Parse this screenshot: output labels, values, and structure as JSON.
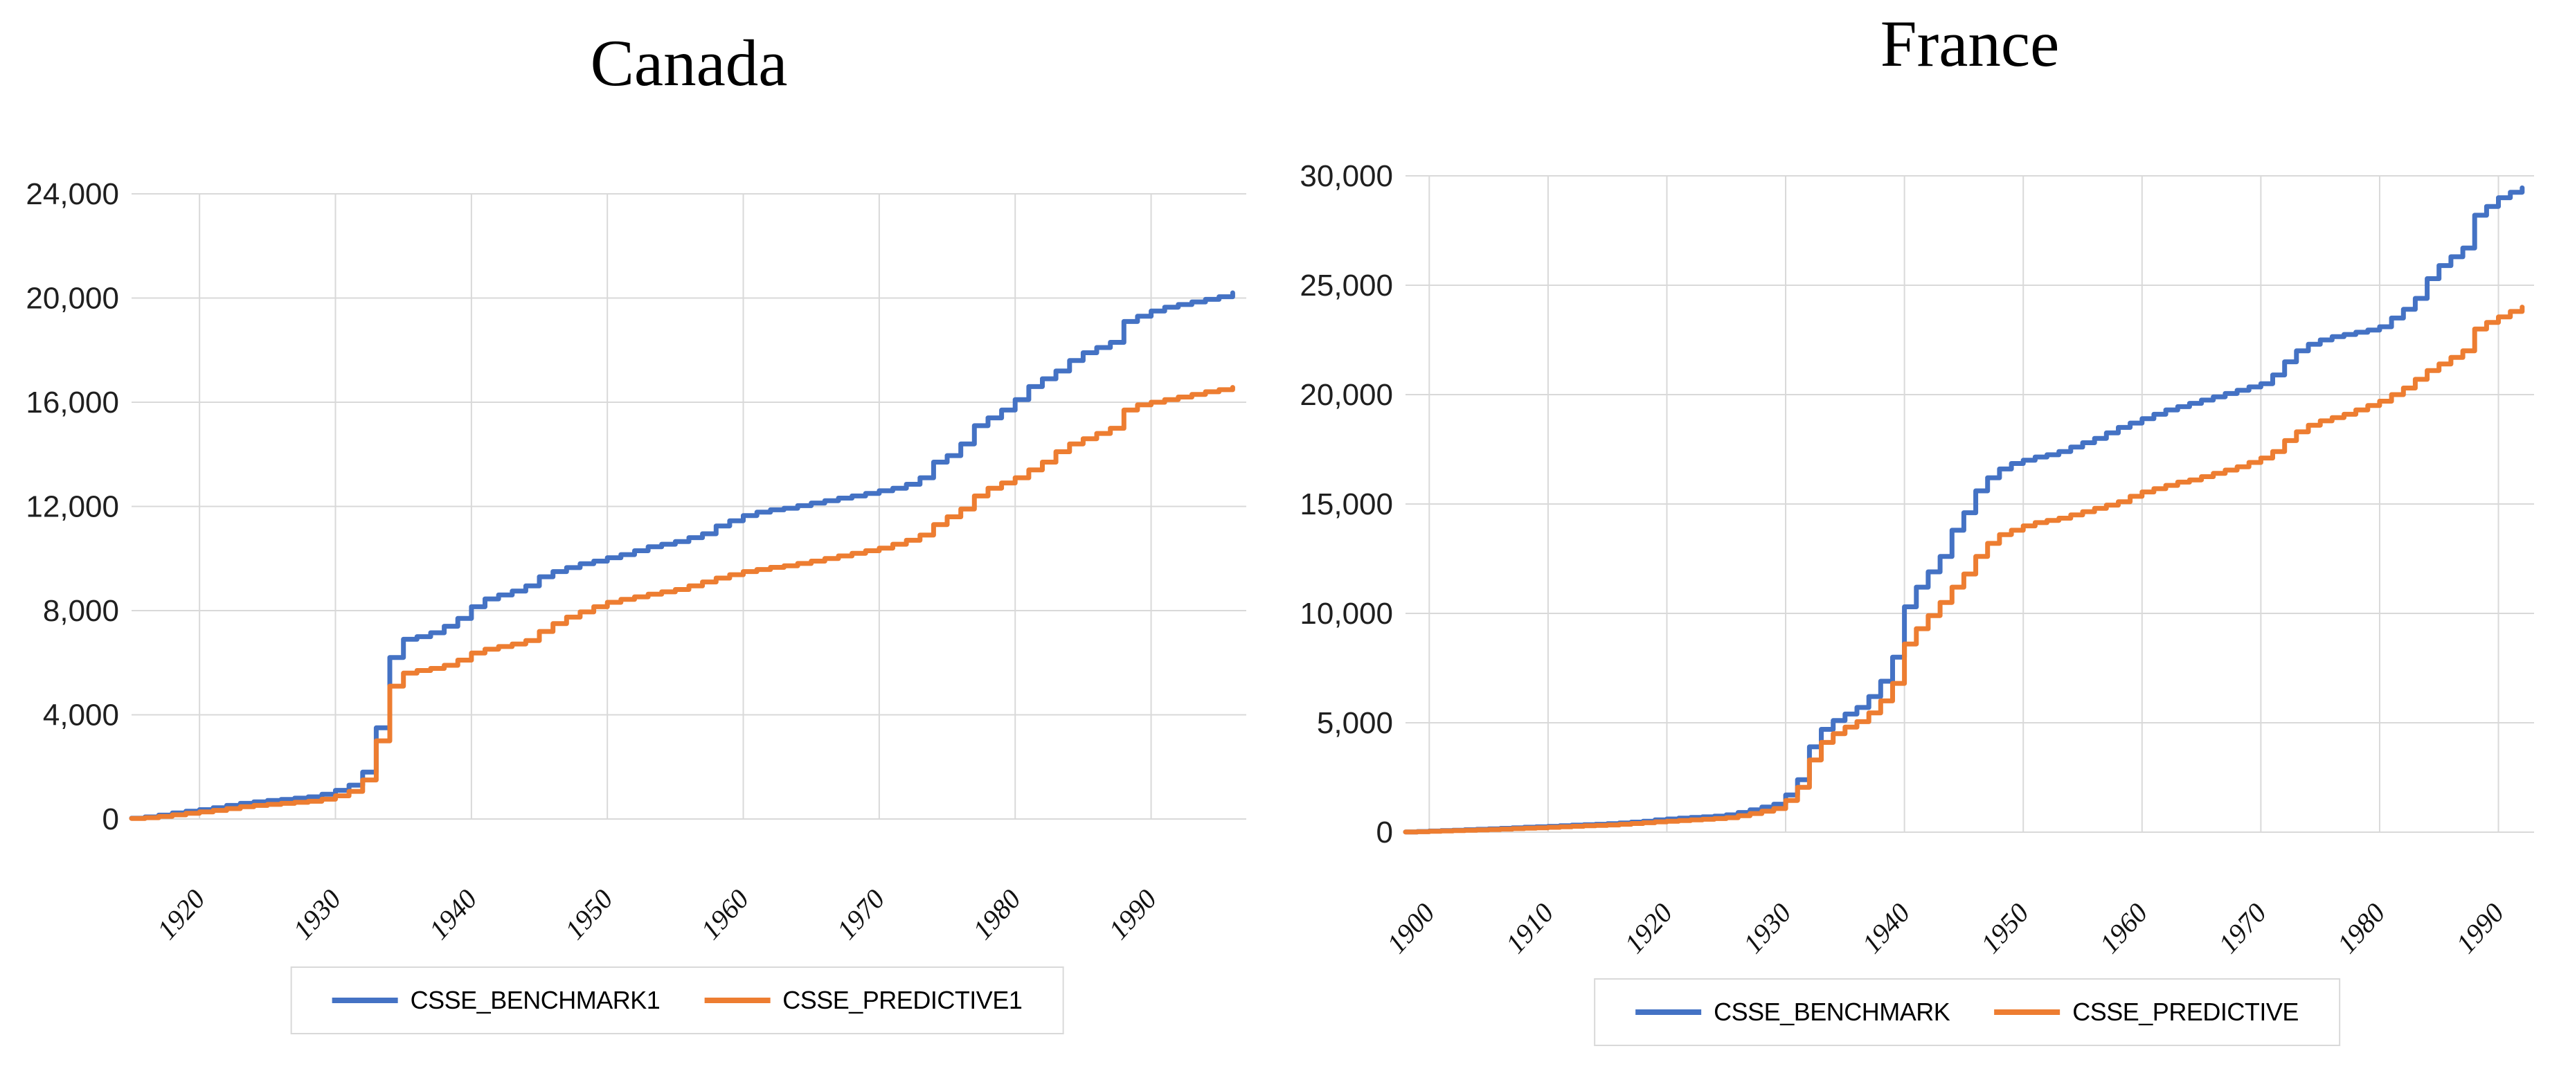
{
  "colors": {
    "benchmark_blue": "#4472C4",
    "predictive_orange": "#ED7D31",
    "gridline": "#D9D9D9",
    "tick_text": "#1f1f1f"
  },
  "chart_data": [
    {
      "type": "line",
      "title": "Canada",
      "line_style": "step-after",
      "grid": true,
      "legend_position": "bottom",
      "x_start_year": 1915,
      "x_end_year": 1996,
      "xlim": [
        1915,
        1997
      ],
      "ylim": [
        0,
        24000
      ],
      "x_tick_years": [
        1920,
        1930,
        1940,
        1950,
        1960,
        1970,
        1980,
        1990
      ],
      "x_tick_labels": [
        "1920",
        "1930",
        "1940",
        "1950",
        "1960",
        "1970",
        "1980",
        "1990"
      ],
      "y_tick_values": [
        0,
        4000,
        8000,
        12000,
        16000,
        20000,
        24000
      ],
      "y_tick_labels": [
        "0",
        "4,000",
        "8,000",
        "12,000",
        "16,000",
        "20,000",
        "24,000"
      ],
      "series": [
        {
          "name": "CSSE_BENCHMARK1",
          "color": "#4472C4",
          "values": [
            30,
            80,
            150,
            230,
            300,
            360,
            430,
            520,
            600,
            660,
            710,
            750,
            800,
            850,
            950,
            1100,
            1300,
            1800,
            3500,
            6200,
            6900,
            7000,
            7150,
            7400,
            7700,
            8150,
            8450,
            8600,
            8750,
            8950,
            9300,
            9500,
            9650,
            9800,
            9900,
            10030,
            10150,
            10300,
            10450,
            10550,
            10650,
            10800,
            10950,
            11250,
            11450,
            11650,
            11780,
            11870,
            11930,
            12030,
            12130,
            12220,
            12320,
            12400,
            12500,
            12600,
            12700,
            12850,
            13100,
            13700,
            13950,
            14400,
            15100,
            15400,
            15700,
            16100,
            16600,
            16900,
            17200,
            17600,
            17900,
            18100,
            18300,
            19100,
            19300,
            19500,
            19650,
            19750,
            19850,
            19950,
            20050,
            20200
          ]
        },
        {
          "name": "CSSE_PREDICTIVE1",
          "color": "#ED7D31",
          "values": [
            20,
            50,
            100,
            160,
            220,
            270,
            330,
            400,
            470,
            520,
            560,
            600,
            640,
            680,
            760,
            890,
            1060,
            1500,
            3000,
            5100,
            5600,
            5700,
            5780,
            5900,
            6100,
            6370,
            6520,
            6620,
            6720,
            6850,
            7200,
            7500,
            7750,
            7950,
            8150,
            8320,
            8430,
            8530,
            8630,
            8720,
            8810,
            8950,
            9100,
            9250,
            9380,
            9500,
            9580,
            9660,
            9720,
            9810,
            9900,
            10000,
            10100,
            10200,
            10300,
            10400,
            10550,
            10700,
            10900,
            11300,
            11600,
            11900,
            12400,
            12700,
            12900,
            13100,
            13400,
            13700,
            14100,
            14400,
            14600,
            14800,
            15000,
            15700,
            15900,
            16000,
            16100,
            16200,
            16300,
            16400,
            16480,
            16570
          ]
        }
      ]
    },
    {
      "type": "line",
      "title": "France",
      "line_style": "step-after",
      "grid": true,
      "legend_position": "bottom",
      "x_start_year": 1898,
      "x_end_year": 1992,
      "xlim": [
        1898,
        1993
      ],
      "ylim": [
        0,
        30000
      ],
      "x_tick_years": [
        1900,
        1910,
        1920,
        1930,
        1940,
        1950,
        1960,
        1970,
        1980,
        1990
      ],
      "x_tick_labels": [
        "1900",
        "1910",
        "1920",
        "1930",
        "1940",
        "1950",
        "1960",
        "1970",
        "1980",
        "1990"
      ],
      "y_tick_values": [
        0,
        5000,
        10000,
        15000,
        20000,
        25000,
        30000
      ],
      "y_tick_labels": [
        "0",
        "5,000",
        "10,000",
        "15,000",
        "20,000",
        "25,000",
        "30,000"
      ],
      "series": [
        {
          "name": "CSSE_BENCHMARK",
          "color": "#4472C4",
          "values": [
            10,
            30,
            50,
            70,
            90,
            110,
            130,
            150,
            175,
            200,
            225,
            245,
            265,
            290,
            320,
            340,
            360,
            385,
            420,
            460,
            500,
            560,
            600,
            640,
            670,
            700,
            730,
            790,
            900,
            1020,
            1150,
            1280,
            1700,
            2400,
            3900,
            4700,
            5100,
            5400,
            5700,
            6200,
            6900,
            8000,
            10300,
            11200,
            11900,
            12600,
            13800,
            14600,
            15600,
            16200,
            16600,
            16850,
            17000,
            17150,
            17250,
            17400,
            17600,
            17800,
            18000,
            18250,
            18500,
            18700,
            18900,
            19100,
            19300,
            19450,
            19600,
            19750,
            19900,
            20050,
            20200,
            20350,
            20500,
            20900,
            21500,
            22000,
            22300,
            22500,
            22650,
            22750,
            22850,
            22950,
            23100,
            23500,
            23900,
            24400,
            25300,
            25900,
            26300,
            26700,
            28200,
            28600,
            29000,
            29250,
            29450
          ]
        },
        {
          "name": "CSSE_PREDICTIVE",
          "color": "#ED7D31",
          "values": [
            5,
            20,
            40,
            55,
            70,
            85,
            100,
            120,
            140,
            160,
            180,
            200,
            220,
            245,
            270,
            290,
            310,
            330,
            360,
            395,
            430,
            470,
            500,
            530,
            560,
            590,
            620,
            660,
            750,
            850,
            960,
            1080,
            1450,
            2050,
            3300,
            4100,
            4500,
            4800,
            5050,
            5450,
            6000,
            6800,
            8600,
            9300,
            9900,
            10500,
            11200,
            11800,
            12600,
            13200,
            13600,
            13800,
            14000,
            14150,
            14250,
            14350,
            14500,
            14650,
            14800,
            14950,
            15100,
            15350,
            15550,
            15700,
            15850,
            16000,
            16100,
            16250,
            16400,
            16550,
            16700,
            16900,
            17100,
            17400,
            17900,
            18300,
            18600,
            18800,
            18950,
            19100,
            19300,
            19500,
            19700,
            20000,
            20300,
            20700,
            21100,
            21400,
            21700,
            22000,
            23000,
            23300,
            23550,
            23800,
            24000
          ]
        }
      ]
    }
  ]
}
